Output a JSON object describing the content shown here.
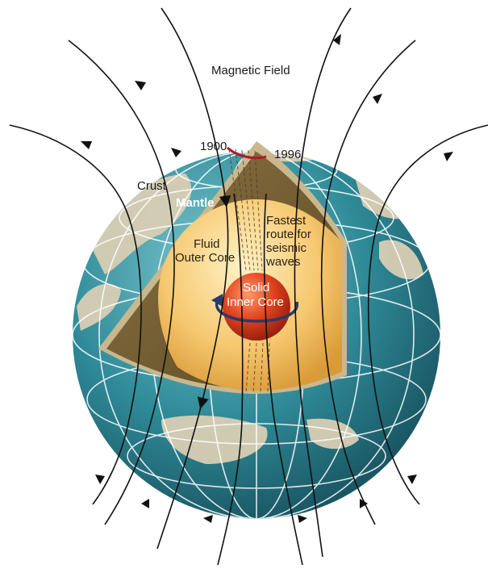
{
  "labels": {
    "magnetic_field": "Magnetic Field",
    "year_1900": "1900",
    "year_1996": "1996",
    "crust": "Crust",
    "mantle": "Mantle",
    "fastest_line1": "Fastest",
    "fastest_line2": "route for",
    "fastest_line3": "seismic",
    "fastest_line4": "waves",
    "outer_core_line1": "Fluid",
    "outer_core_line2": "Outer Core",
    "inner_core_line1": "Solid",
    "inner_core_line2": "Inner Core"
  },
  "colors": {
    "ocean": "#2f8a98",
    "land": "#d8ceb4",
    "mantle": "#7a6236",
    "outer_core": "#f6c870",
    "inner_core": "#d8361e",
    "field_line": "#111111",
    "pole_arc": "#b01828"
  }
}
